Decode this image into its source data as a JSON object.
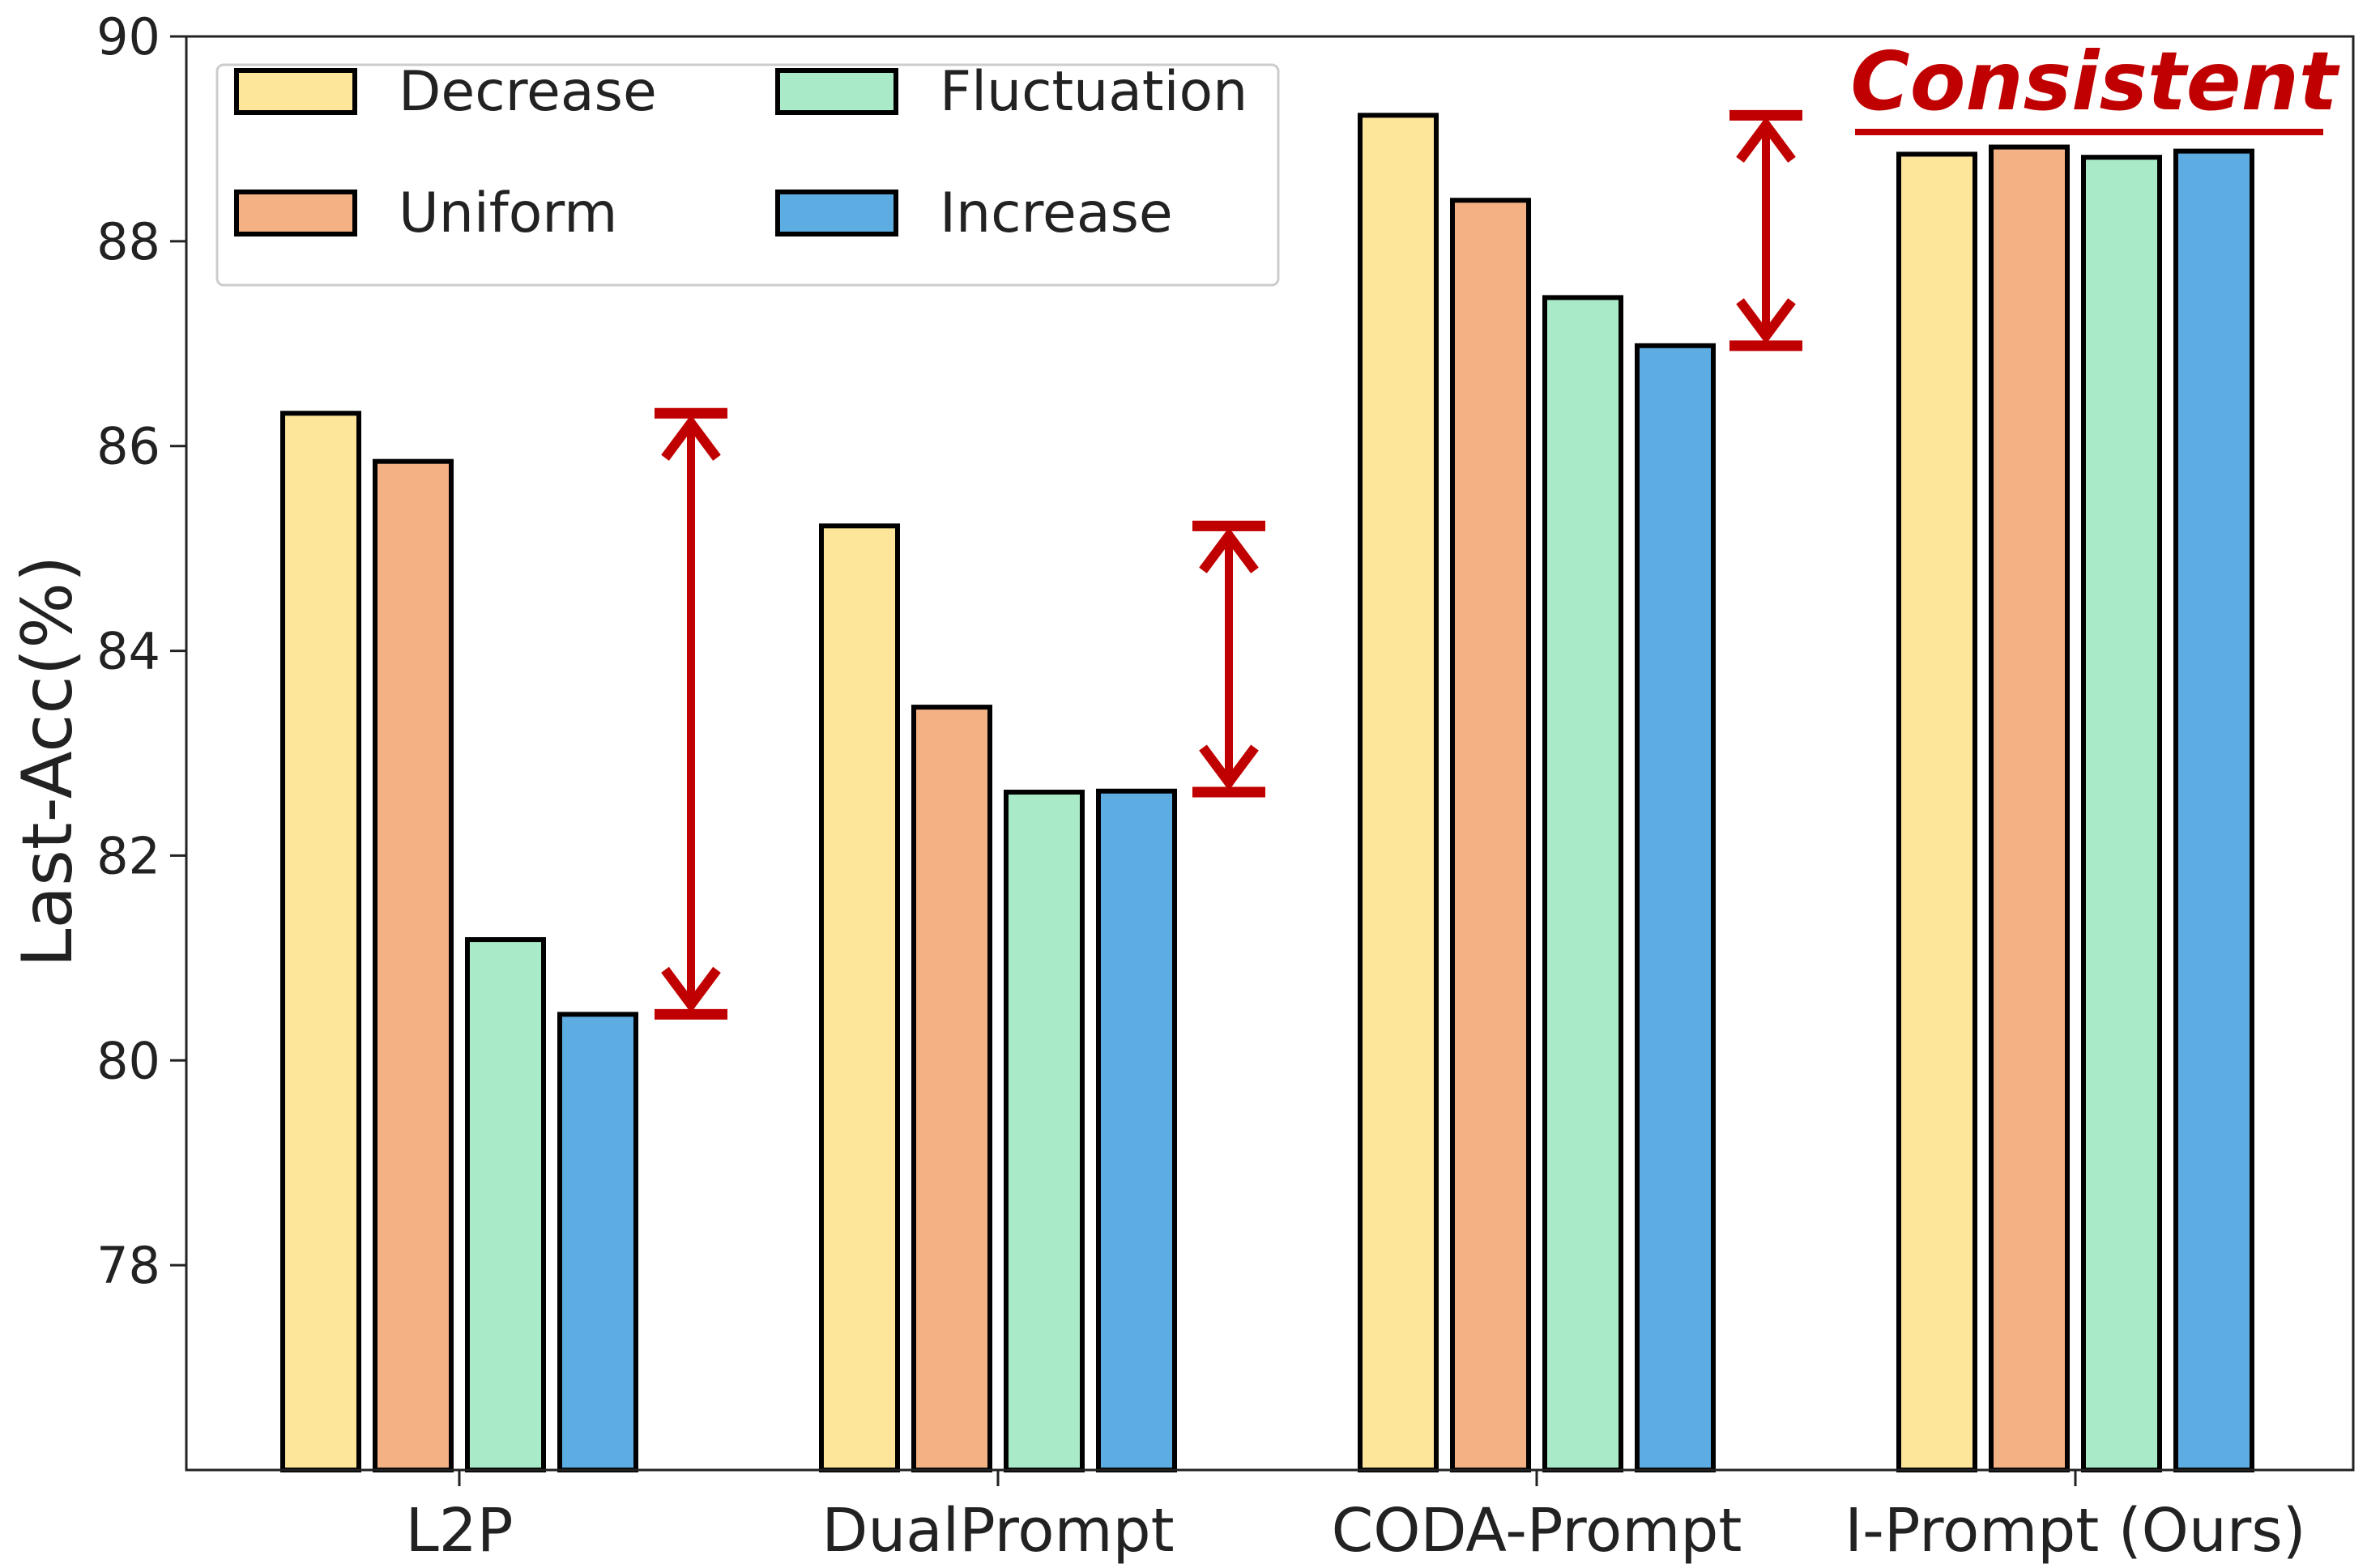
{
  "chart_data": {
    "type": "bar",
    "title": "",
    "xlabel": "",
    "ylabel": "Last-Acc(%)",
    "ylim": [
      76,
      90
    ],
    "yticks": [
      78,
      80,
      82,
      84,
      86,
      88,
      90
    ],
    "categories": [
      "L2P",
      "DualPrompt",
      "CODA-Prompt",
      "I-Prompt (Ours)"
    ],
    "series": [
      {
        "name": "Decrease",
        "color": "#FDE59A",
        "values": [
          86.32,
          85.22,
          89.23,
          88.85
        ]
      },
      {
        "name": "Uniform",
        "color": "#F4B183",
        "values": [
          85.85,
          83.45,
          88.4,
          88.92
        ]
      },
      {
        "name": "Fluctuation",
        "color": "#A9EBC8",
        "values": [
          81.18,
          82.62,
          87.45,
          88.82
        ]
      },
      {
        "name": "Increase",
        "color": "#5DADE2",
        "values": [
          80.45,
          82.63,
          86.98,
          88.88
        ]
      }
    ],
    "legend": {
      "position": "top-left",
      "columns": 2
    },
    "annotations": {
      "range_arrows": [
        {
          "category": "L2P",
          "from": 80.45,
          "to": 86.32
        },
        {
          "category": "DualPrompt",
          "from": 82.62,
          "to": 85.22
        },
        {
          "category": "CODA-Prompt",
          "from": 86.98,
          "to": 89.23
        }
      ],
      "consistent_label": "Consistent",
      "arrow_color": "#C00000"
    }
  }
}
